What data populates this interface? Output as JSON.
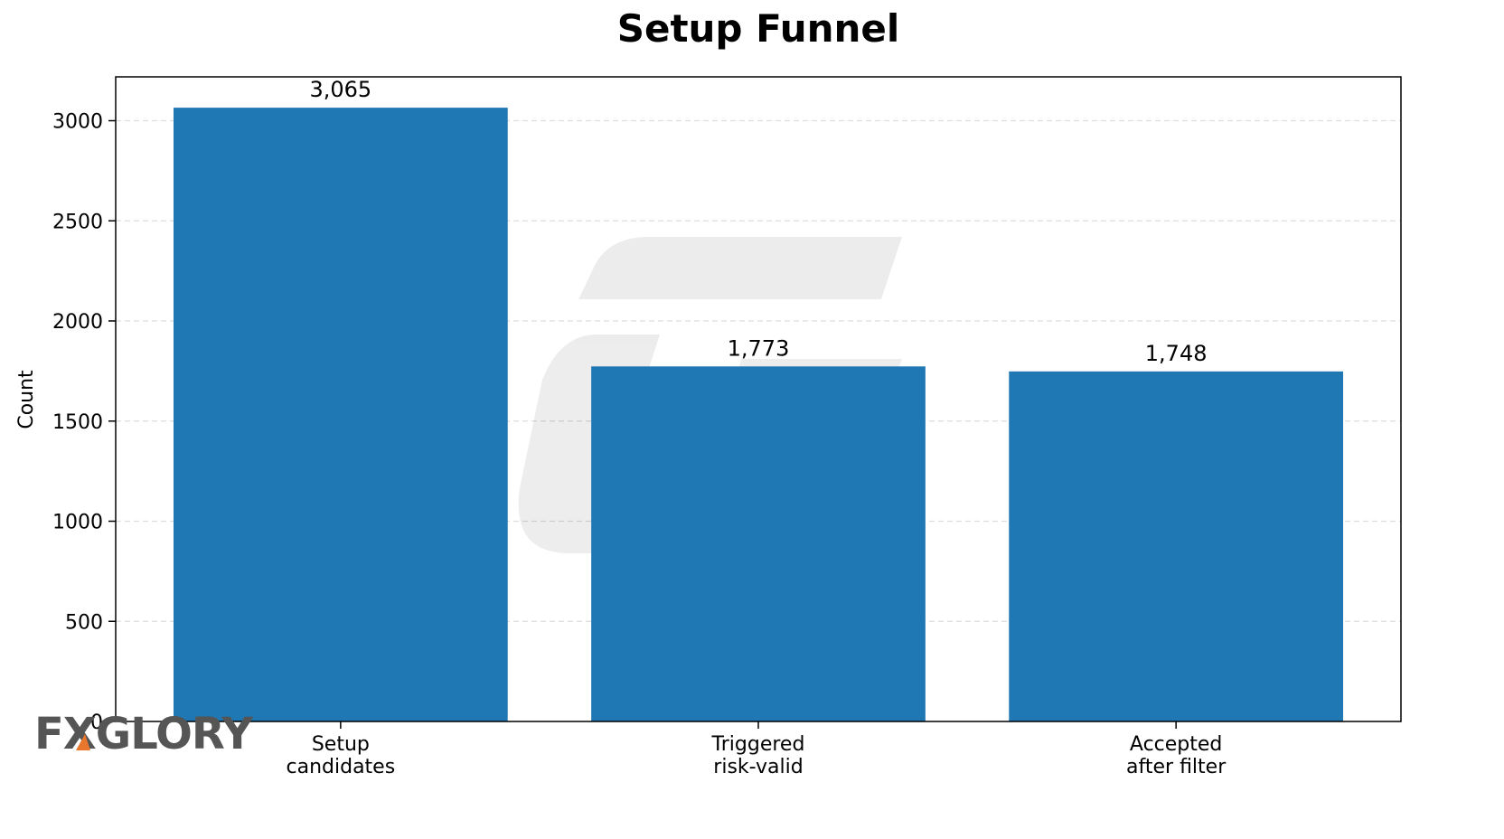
{
  "chart_data": {
    "type": "bar",
    "title": "Setup Funnel",
    "xlabel": "",
    "ylabel": "Count",
    "categories": [
      [
        "Setup",
        "candidates"
      ],
      [
        "Triggered",
        "risk-valid"
      ],
      [
        "Accepted",
        "after filter"
      ]
    ],
    "values": [
      3065,
      1773,
      1748
    ],
    "data_labels": [
      "3,065",
      "1,773",
      "1,748"
    ],
    "yticks": [
      0,
      500,
      1000,
      1500,
      2000,
      2500,
      3000
    ],
    "ylim": [
      0,
      3219
    ],
    "grid": true,
    "bar_color": "#1f77b4",
    "grid_color": "#dddddd"
  },
  "watermark": {
    "logo_text": "FXGLORY",
    "accent_color": "#e8762c"
  }
}
